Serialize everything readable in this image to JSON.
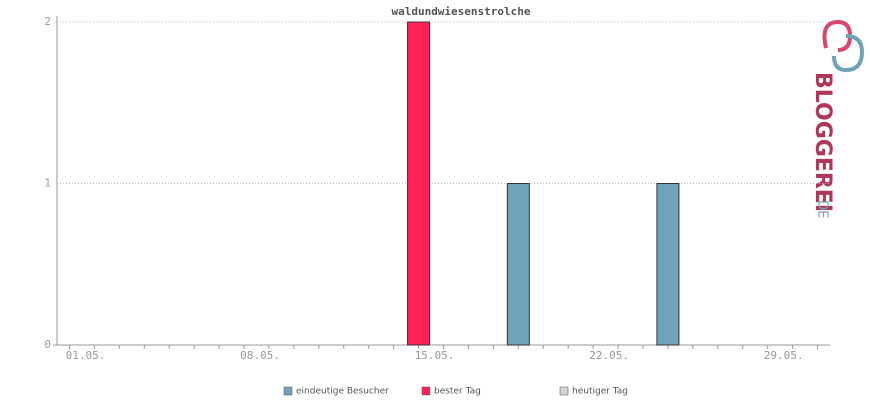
{
  "chart_data": {
    "type": "bar",
    "title": "waldundwiesenstrolche",
    "categories": [
      "01.05.",
      null,
      null,
      null,
      null,
      null,
      null,
      "08.05.",
      null,
      null,
      null,
      null,
      null,
      null,
      "15.05.",
      null,
      null,
      null,
      null,
      null,
      null,
      "22.05.",
      null,
      null,
      null,
      null,
      null,
      null,
      "29.05.",
      null,
      null
    ],
    "series": [
      {
        "name": "eindeutige Besucher",
        "color": "#6fa3b8",
        "values": [
          0,
          0,
          0,
          0,
          0,
          0,
          0,
          0,
          0,
          0,
          0,
          0,
          0,
          0,
          null,
          0,
          0,
          0,
          1,
          0,
          0,
          0,
          0,
          0,
          1,
          0,
          0,
          0,
          0,
          0,
          0
        ]
      },
      {
        "name": "bester Tag",
        "color": "#ff2257",
        "values": [
          null,
          null,
          null,
          null,
          null,
          null,
          null,
          null,
          null,
          null,
          null,
          null,
          null,
          null,
          2,
          null,
          null,
          null,
          null,
          null,
          null,
          null,
          null,
          null,
          null,
          null,
          null,
          null,
          null,
          null,
          null
        ]
      },
      {
        "name": "heutiger Tag",
        "color": "#d4d4d4",
        "values": [
          null,
          null,
          null,
          null,
          null,
          null,
          null,
          null,
          null,
          null,
          null,
          null,
          null,
          null,
          null,
          null,
          null,
          null,
          null,
          null,
          null,
          null,
          null,
          null,
          null,
          null,
          null,
          null,
          null,
          null,
          null
        ]
      }
    ],
    "ylim": [
      0,
      2
    ],
    "yticks": [
      0,
      1,
      2
    ],
    "grid": true
  },
  "logo": {
    "name": "BLOGGEREI",
    "suffix": ".DE"
  }
}
